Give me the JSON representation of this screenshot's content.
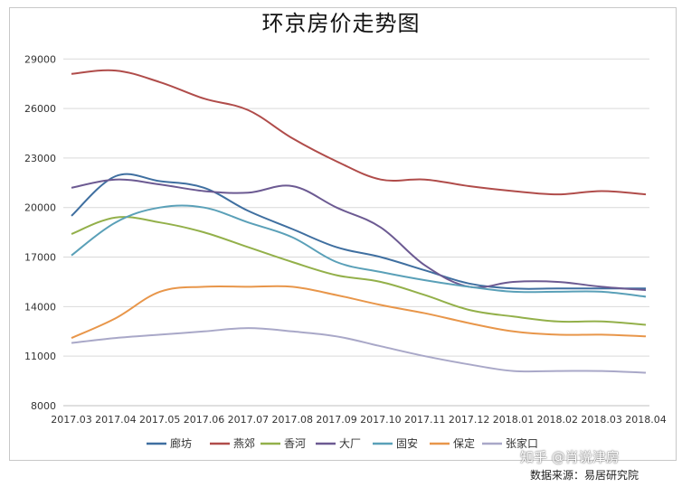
{
  "chart_data": {
    "type": "line",
    "title": "环京房价走势图",
    "xlabel": "",
    "ylabel": "",
    "categories": [
      "2017.03",
      "2017.04",
      "2017.05",
      "2017.06",
      "2017.07",
      "2017.08",
      "2017.09",
      "2017.10",
      "2017.11",
      "2017.12",
      "2018.01",
      "2018.02",
      "2018.03",
      "2018.04"
    ],
    "yticks": [
      8000,
      11000,
      14000,
      17000,
      20000,
      23000,
      26000,
      29000
    ],
    "ylim": [
      8000,
      30000
    ],
    "grid": true,
    "legend_position": "bottom",
    "series": [
      {
        "name": "廊坊",
        "color": "#3f6fa0",
        "values": [
          19500,
          21900,
          21600,
          21200,
          19800,
          18700,
          17600,
          17000,
          16200,
          15400,
          15100,
          15100,
          15100,
          15100
        ]
      },
      {
        "name": "燕郊",
        "color": "#b04c4a",
        "values": [
          28100,
          28300,
          27600,
          26600,
          25900,
          24200,
          22800,
          21700,
          21700,
          21300,
          21000,
          20800,
          21000,
          20800
        ]
      },
      {
        "name": "香河",
        "color": "#93b04a",
        "values": [
          18400,
          19400,
          19100,
          18500,
          17600,
          16700,
          15900,
          15500,
          14700,
          13800,
          13400,
          13100,
          13100,
          12900
        ]
      },
      {
        "name": "大厂",
        "color": "#6c5a92",
        "values": [
          21200,
          21700,
          21400,
          21000,
          20900,
          21300,
          20000,
          18800,
          16500,
          15200,
          15500,
          15500,
          15200,
          15000
        ]
      },
      {
        "name": "固安",
        "color": "#5aa0b8",
        "values": [
          17100,
          19100,
          20000,
          20000,
          19100,
          18200,
          16700,
          16100,
          15600,
          15200,
          14900,
          14900,
          14900,
          14600
        ]
      },
      {
        "name": "保定",
        "color": "#e8964a",
        "values": [
          12100,
          13300,
          14900,
          15200,
          15200,
          15200,
          14700,
          14100,
          13600,
          13000,
          12500,
          12300,
          12300,
          12200
        ]
      },
      {
        "name": "张家口",
        "color": "#a9a8c8",
        "values": [
          11800,
          12100,
          12300,
          12500,
          12700,
          12500,
          12200,
          11600,
          11000,
          10500,
          10100,
          10100,
          10100,
          10000
        ]
      }
    ]
  },
  "watermark": "知乎 @肖说津房",
  "source": "数据来源：易居研究院"
}
